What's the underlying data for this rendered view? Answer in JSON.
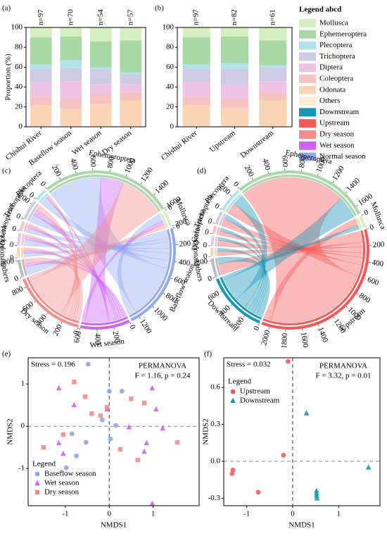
{
  "legend": {
    "title": "Legend abcd",
    "items": [
      {
        "name": "Mollusca",
        "color": "#d5eebf"
      },
      {
        "name": "Ephemeroptera",
        "color": "#a9d8a6"
      },
      {
        "name": "Plecoptera",
        "color": "#b3e3ea"
      },
      {
        "name": "Trichoptera",
        "color": "#cdcbe6"
      },
      {
        "name": "Diptera",
        "color": "#eec4e4"
      },
      {
        "name": "Coleoptera",
        "color": "#f6c2c2"
      },
      {
        "name": "Odonata",
        "color": "#f9d5b5"
      },
      {
        "name": "Others",
        "color": "#fdebd8"
      },
      {
        "name": "Downstream",
        "color": "#1697b4"
      },
      {
        "name": "Upstream",
        "color": "#f25a5a"
      },
      {
        "name": "Dry season",
        "color": "#f48c8c"
      },
      {
        "name": "Wet season",
        "color": "#cd63f0"
      },
      {
        "name": "Normal season",
        "color": "#93a9ee"
      }
    ]
  },
  "chart_data": [
    {
      "panel": "(a)",
      "type": "bar",
      "stacked": true,
      "ylabel": "Proportion (%)",
      "categories": [
        "Chishui River",
        "Baseflow season",
        "Wet season",
        "Dry season"
      ],
      "n_labels": [
        "n=97",
        "n=70",
        "n=54",
        "n=57"
      ],
      "ylim": [
        0,
        100
      ],
      "yticks": [
        0,
        20,
        40,
        60,
        80,
        100
      ],
      "series": [
        {
          "color": "#fdebd8",
          "values": [
            1,
            1,
            1,
            1
          ]
        },
        {
          "color": "#f9d5b5",
          "values": [
            21,
            17,
            22,
            26
          ]
        },
        {
          "color": "#f6c2c2",
          "values": [
            8,
            10,
            10,
            8
          ]
        },
        {
          "color": "#eec4e4",
          "values": [
            15,
            18,
            10,
            8
          ]
        },
        {
          "color": "#cdcbe6",
          "values": [
            13,
            13,
            15,
            10
          ]
        },
        {
          "color": "#b3e3ea",
          "values": [
            5,
            8,
            2,
            2
          ]
        },
        {
          "color": "#a9d8a6",
          "values": [
            27,
            24,
            26,
            32
          ]
        },
        {
          "color": "#d5eebf",
          "values": [
            10,
            9,
            14,
            13
          ]
        }
      ]
    },
    {
      "panel": "(b)",
      "type": "bar",
      "stacked": true,
      "categories": [
        "Chishui River",
        "Upstream",
        "Downstream"
      ],
      "n_labels": [
        "n=97",
        "n=82",
        "n=61"
      ],
      "ylim": [
        0,
        100
      ],
      "yticks": [
        0,
        20,
        40,
        60,
        80,
        100
      ],
      "series": [
        {
          "color": "#fdebd8",
          "values": [
            1,
            1,
            1
          ]
        },
        {
          "color": "#f9d5b5",
          "values": [
            21,
            18,
            26
          ]
        },
        {
          "color": "#f6c2c2",
          "values": [
            8,
            9,
            7
          ]
        },
        {
          "color": "#eec4e4",
          "values": [
            15,
            14,
            12
          ]
        },
        {
          "color": "#cdcbe6",
          "values": [
            13,
            16,
            14
          ]
        },
        {
          "color": "#b3e3ea",
          "values": [
            5,
            6,
            2
          ]
        },
        {
          "color": "#a9d8a6",
          "values": [
            27,
            27,
            25
          ]
        },
        {
          "color": "#d5eebf",
          "values": [
            10,
            9,
            13
          ]
        }
      ]
    },
    {
      "panel": "(c)",
      "type": "chord",
      "rows": [
        "Others",
        "Odonata",
        "Diptera",
        "Coleoptera",
        "Trichoptera",
        "Plecoptera",
        "Ephemeroptera",
        "Mollusca"
      ],
      "row_colors": [
        "#bdbdbd",
        "#f9d5b5",
        "#eec4e4",
        "#f6c2c2",
        "#cdcbe6",
        "#b3e3ea",
        "#a9d8a6",
        "#d5eebf"
      ],
      "row_ticks": [
        [
          0,
          200
        ],
        [
          0
        ],
        [
          0
        ],
        [
          0
        ],
        [
          0,
          200
        ],
        [
          0
        ],
        [
          0,
          200,
          400,
          600,
          800,
          1000,
          1200,
          1400,
          1600
        ],
        [
          0,
          200
        ]
      ],
      "columns": [
        "Baseflow season",
        "Wet season",
        "Dry season"
      ],
      "column_colors": [
        "#93a9ee",
        "#cd63f0",
        "#f48c8c"
      ],
      "column_ticks": [
        [
          0,
          200,
          400,
          600,
          800,
          1000,
          1200
        ],
        [
          0,
          200,
          400,
          600
        ],
        [
          0,
          200,
          400,
          600,
          800
        ]
      ],
      "matrix": [
        [
          110,
          40,
          60
        ],
        [
          50,
          40,
          30
        ],
        [
          80,
          40,
          30
        ],
        [
          60,
          30,
          30
        ],
        [
          100,
          80,
          70
        ],
        [
          100,
          20,
          30
        ],
        [
          700,
          300,
          600
        ],
        [
          100,
          50,
          50
        ]
      ]
    },
    {
      "panel": "(d)",
      "type": "chord",
      "rows": [
        "Others",
        "Odonata",
        "Diptera",
        "Coleoptera",
        "Trichoptera",
        "Plecoptera",
        "Ephemeroptera",
        "Mollusca"
      ],
      "row_colors": [
        "#bdbdbd",
        "#f9d5b5",
        "#eec4e4",
        "#f6c2c2",
        "#cdcbe6",
        "#b3e3ea",
        "#a9d8a6",
        "#d5eebf"
      ],
      "row_ticks": [
        [
          0,
          200
        ],
        [
          0
        ],
        [
          0
        ],
        [
          0
        ],
        [
          0
        ],
        [
          0,
          200
        ],
        [
          0,
          200,
          400,
          600,
          800,
          1000,
          1200,
          1400,
          1600
        ],
        [
          0
        ]
      ],
      "columns": [
        "Upstream",
        "Downstream"
      ],
      "column_colors": [
        "#f25a5a",
        "#1697b4"
      ],
      "column_ticks": [
        [
          0,
          200,
          400,
          600,
          800,
          1000,
          1200,
          1400,
          1600,
          1800,
          2000
        ],
        [
          0,
          200,
          400,
          600
        ]
      ],
      "matrix": [
        [
          150,
          80
        ],
        [
          60,
          40
        ],
        [
          80,
          40
        ],
        [
          60,
          40
        ],
        [
          100,
          60
        ],
        [
          150,
          150
        ],
        [
          1400,
          300
        ],
        [
          100,
          50
        ]
      ]
    },
    {
      "panel": "(e)",
      "type": "scatter",
      "xlabel": "NMDS1",
      "ylabel": "NMDS2",
      "xlim": [
        -1.85,
        2.05
      ],
      "ylim": [
        -1.88,
        1.62
      ],
      "xticks": [
        -1,
        0,
        1
      ],
      "yticks": [
        -1,
        0,
        1
      ],
      "zero_lines": true,
      "stress": "Stress = 0.196",
      "test": "PERMANOVA",
      "stat": "F = 1.16, p = 0.24",
      "legend_title": "Legend",
      "legend_loc": "lower left",
      "series": [
        {
          "name": "Baseflow season",
          "color": "#8fa6e6",
          "marker": "circle",
          "x": [
            -0.48,
            0,
            0.29,
            0.15,
            -0.16,
            -0.53,
            -0.75,
            -0.98,
            0.03,
            -0.85
          ],
          "y": [
            1.47,
            0.83,
            0.83,
            0.02,
            0.15,
            -0.38,
            -0.7,
            -0.98,
            -0.3,
            -0.18
          ]
        },
        {
          "name": "Wet season",
          "color": "#cd63f0",
          "marker": "triangle",
          "x": [
            -1.15,
            -0.8,
            0.98,
            0.45,
            1.07,
            1.22,
            0.85,
            0.8,
            -1.05,
            0.98,
            -0.05,
            -1.15
          ],
          "y": [
            0.9,
            0.5,
            0.9,
            -0.02,
            0.4,
            -0.05,
            -0.4,
            -0.6,
            -0.65,
            -1.83,
            0.4,
            -0.4
          ]
        },
        {
          "name": "Dry season",
          "color": "#f48c8c",
          "marker": "square",
          "x": [
            -0.8,
            -0.55,
            -0.2,
            -0.05,
            0.5,
            -1.5,
            -1.05,
            0.25,
            0.8,
            0.65,
            1.55,
            -0.4
          ],
          "y": [
            1.05,
            0.7,
            0.25,
            0.45,
            0.65,
            -0.5,
            -0.2,
            -0.55,
            0.55,
            -0.8,
            -0.38,
            0.3
          ]
        }
      ]
    },
    {
      "panel": "(f)",
      "type": "scatter",
      "xlabel": "NMDS1",
      "ylabel": "NMDS2",
      "xlim": [
        -1.5,
        1.9
      ],
      "ylim": [
        -0.36,
        0.84
      ],
      "xticks": [
        -1,
        0,
        1
      ],
      "yticks": [
        -0.3,
        {
          "value": 0,
          "label": "0.0"
        },
        0.3,
        0.6
      ],
      "zero_lines": true,
      "stress": "Stress = 0.032",
      "test": "PERMANOVA",
      "stat": "F = 3.32, p = 0.01",
      "legend_title": "Legend",
      "legend_loc": "upper left",
      "series": [
        {
          "name": "Upstream",
          "color": "#f25a5a",
          "marker": "circle",
          "x": [
            -0.1,
            -0.2,
            -1.3,
            -1.32,
            -0.75
          ],
          "y": [
            0.81,
            0.05,
            -0.07,
            -0.1,
            -0.25
          ]
        },
        {
          "name": "Downstream",
          "color": "#1697b4",
          "marker": "triangle",
          "x": [
            0.3,
            1.65,
            0.52,
            0.52,
            0.52,
            0.53
          ],
          "y": [
            0.39,
            -0.05,
            -0.24,
            -0.26,
            -0.28,
            -0.3
          ]
        }
      ]
    }
  ]
}
